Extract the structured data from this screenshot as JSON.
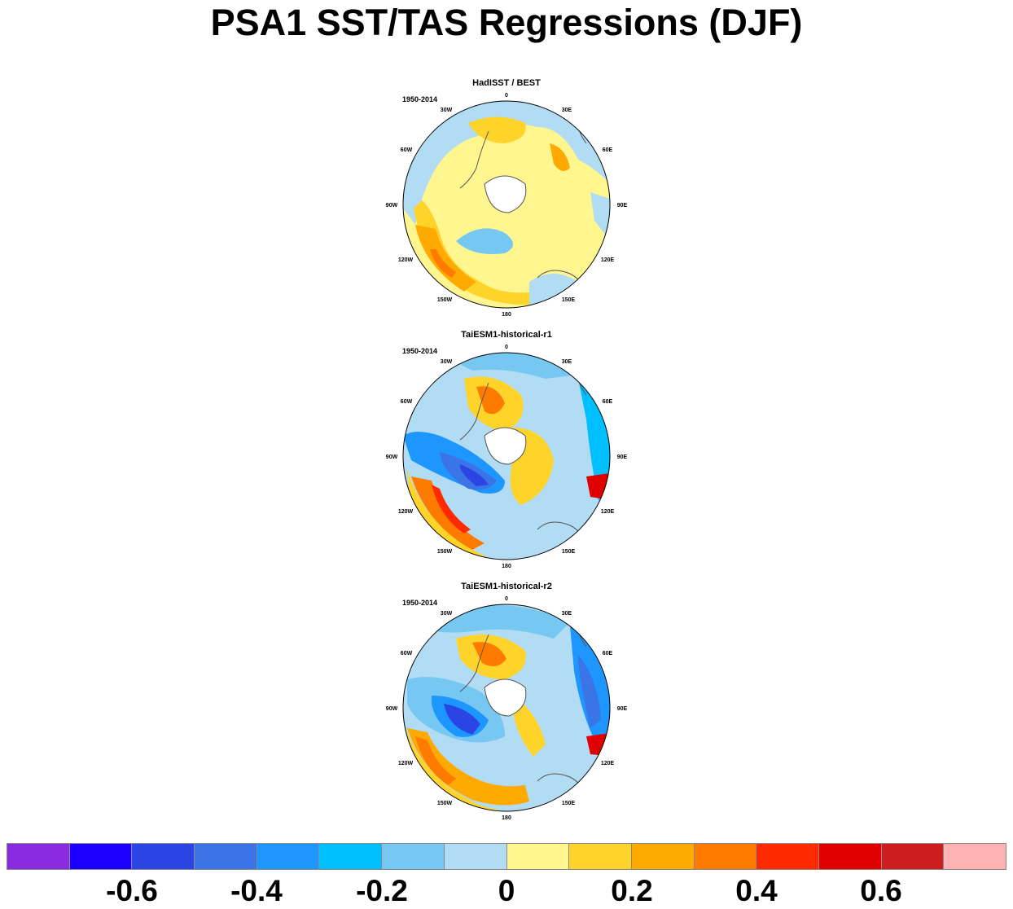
{
  "title": "PSA1 SST/TAS Regressions (DJF)",
  "panels": [
    {
      "title": "HadISST / BEST",
      "period": "1950-2014"
    },
    {
      "title": "TaiESM1-historical-r1",
      "period": "1950-2014"
    },
    {
      "title": "TaiESM1-historical-r2",
      "period": "1950-2014"
    }
  ],
  "longitude_labels": [
    "0",
    "30E",
    "60E",
    "90E",
    "120E",
    "150E",
    "180",
    "150W",
    "120W",
    "90W",
    "60W",
    "30W"
  ],
  "colorbar": {
    "colors": [
      "#8a2be2",
      "#1c00ff",
      "#2b45e5",
      "#3b74e6",
      "#1e96ff",
      "#00bfff",
      "#76c8f2",
      "#b2dcf3",
      "#fff68f",
      "#ffd42a",
      "#ffaa00",
      "#ff7b00",
      "#ff2a00",
      "#e00000",
      "#cc1e1e",
      "#ffb2b2"
    ],
    "labels": [
      "-0.6",
      "-0.4",
      "-0.2",
      "0",
      "0.2",
      "0.4",
      "0.6"
    ]
  }
}
